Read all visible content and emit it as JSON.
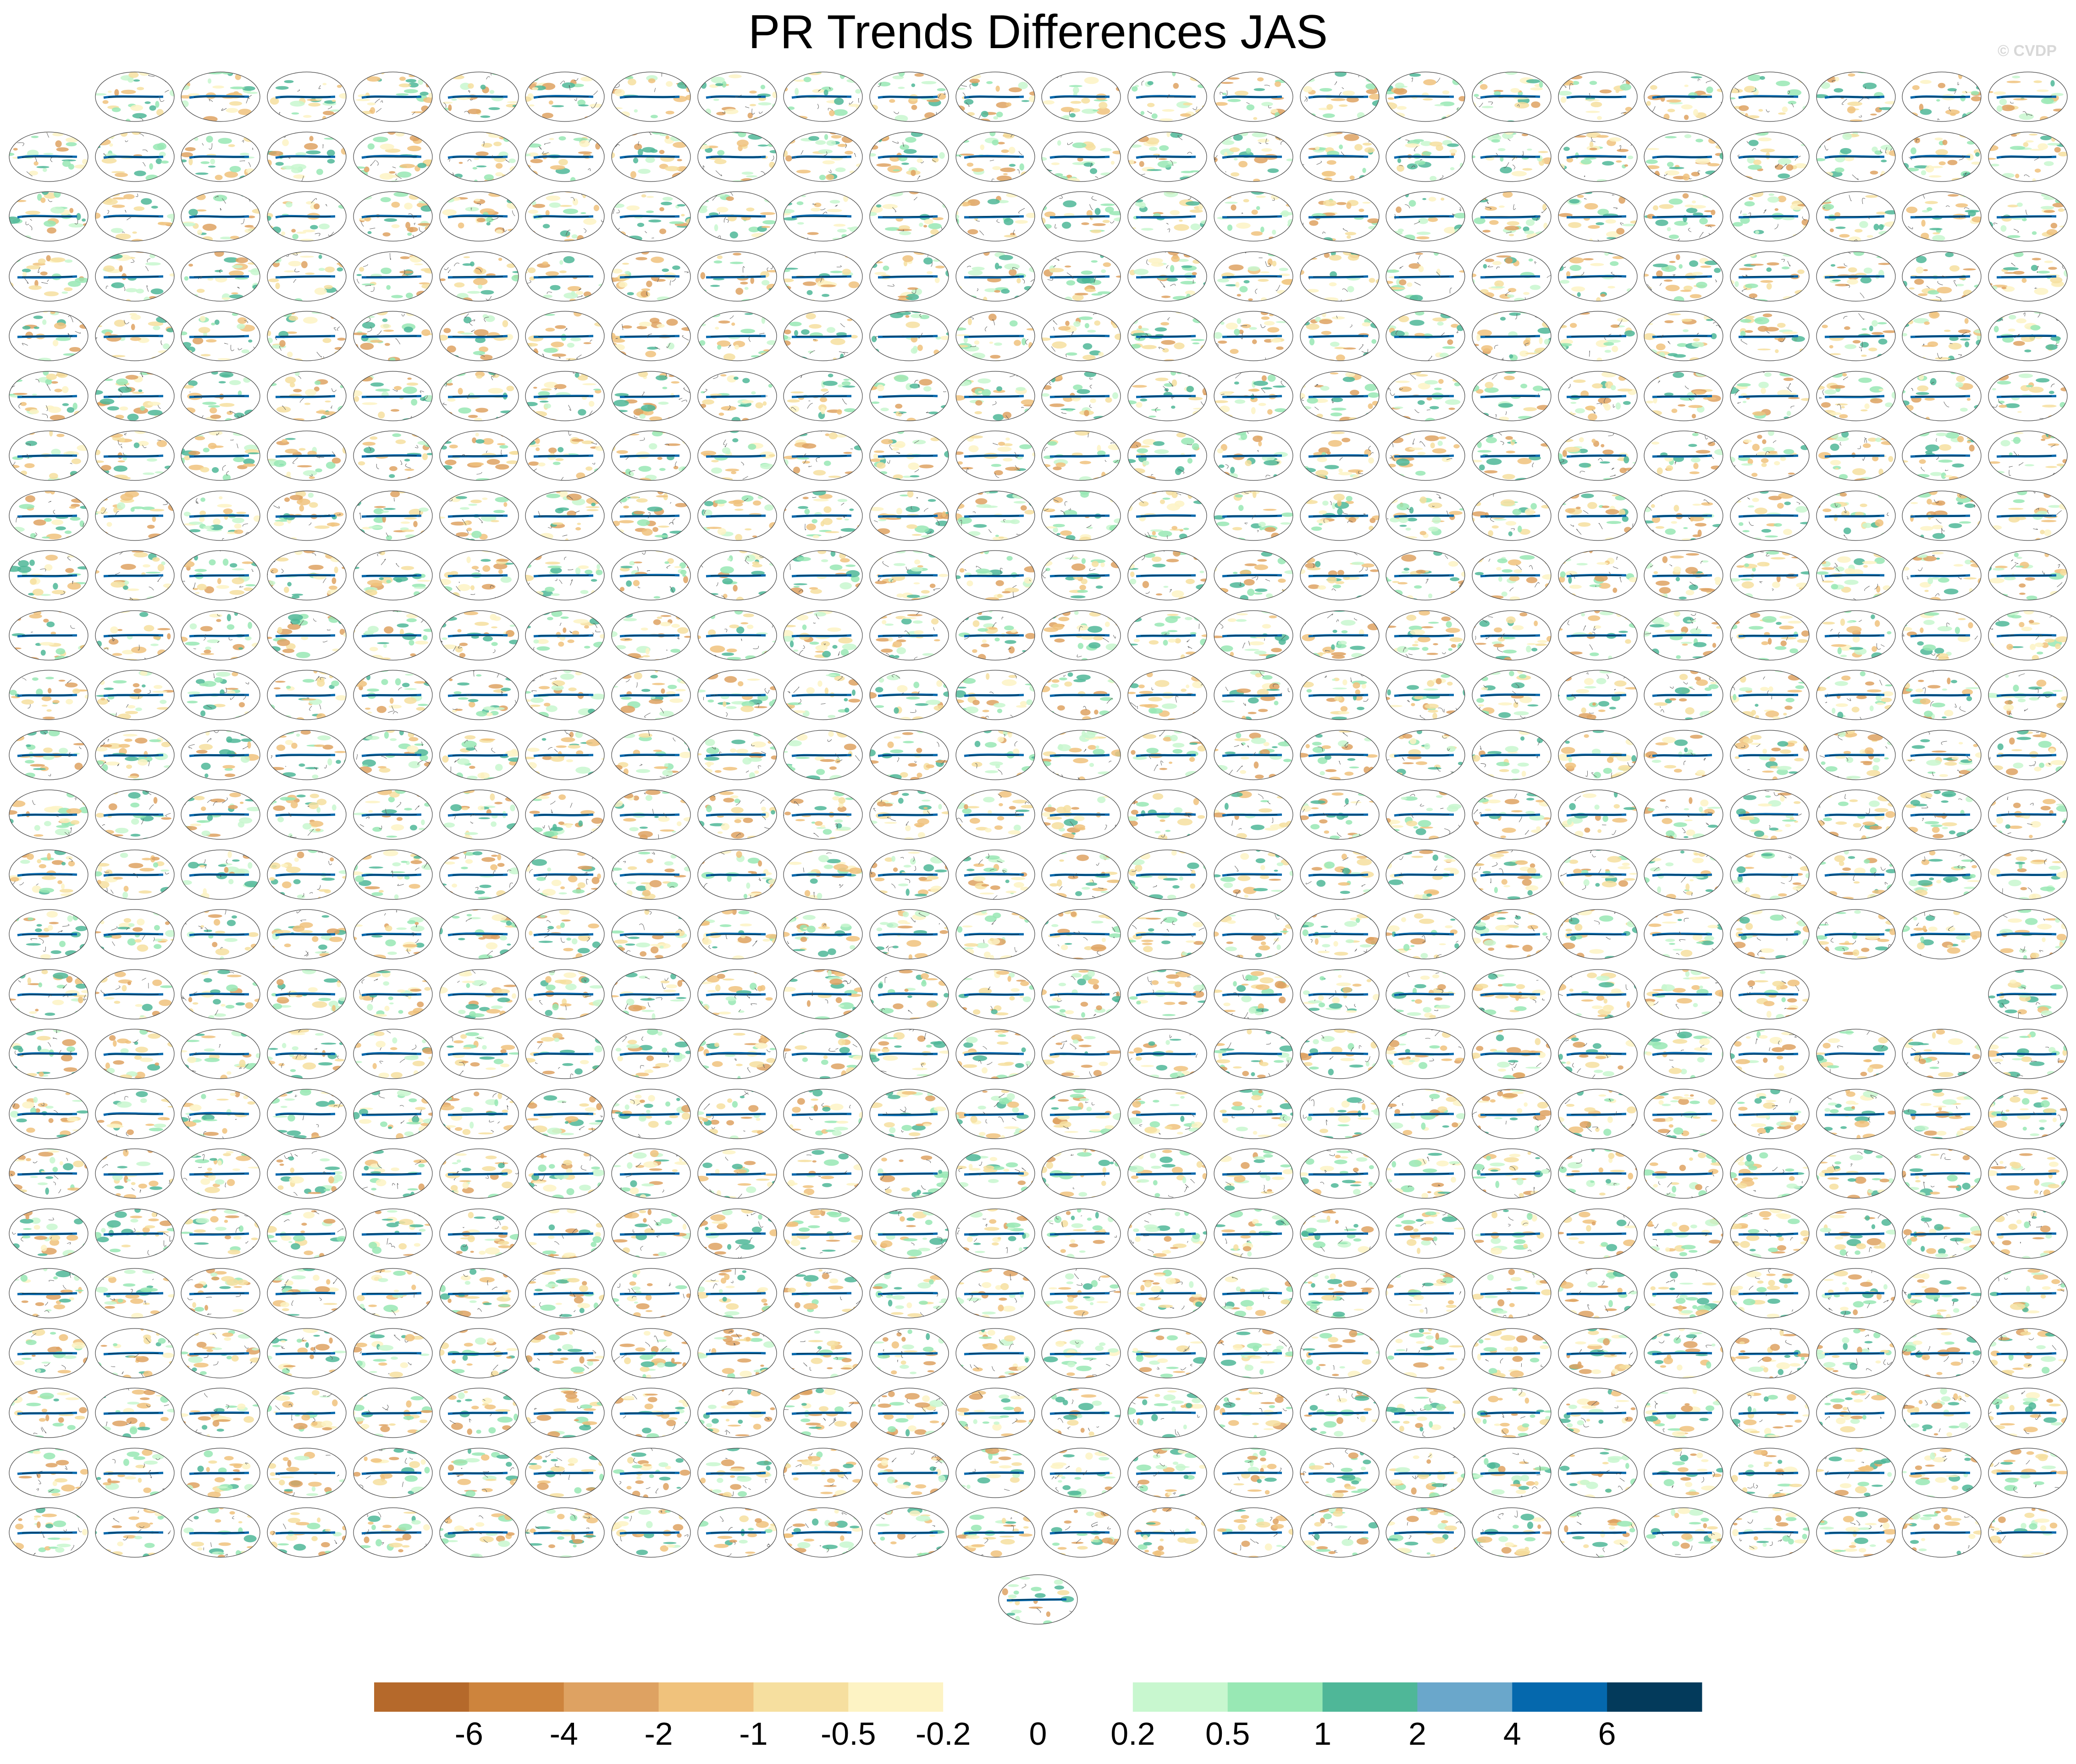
{
  "title": "PR Trends Differences JAS",
  "watermark": "© CVDP",
  "chart_data": {
    "type": "heatmap",
    "title": "PR Trends Differences JAS",
    "layout": {
      "rows": 25,
      "cols": 24,
      "empty_cells": [
        [
          0,
          0
        ],
        [
          15,
          21
        ],
        [
          15,
          22
        ]
      ],
      "extra_panels_centered_below": 1
    },
    "panel_type": "global map (elliptical projection) of precipitation trend differences",
    "colorbar": {
      "orientation": "horizontal",
      "location": "bottom",
      "colors": [
        "#b5692b",
        "#cd843d",
        "#dea262",
        "#f0c27c",
        "#f6df9f",
        "#fdf3c4",
        "#ffffff",
        "#ffffff",
        "#c8f7cf",
        "#98e8b4",
        "#4fb798",
        "#6aa7cb",
        "#0568ad",
        "#033a5b"
      ],
      "tick_labels": [
        "-6",
        "-4",
        "-2",
        "-1",
        "-0.5",
        "-0.2",
        "0",
        "0.2",
        "0.5",
        "1",
        "2",
        "4",
        "6"
      ]
    }
  }
}
